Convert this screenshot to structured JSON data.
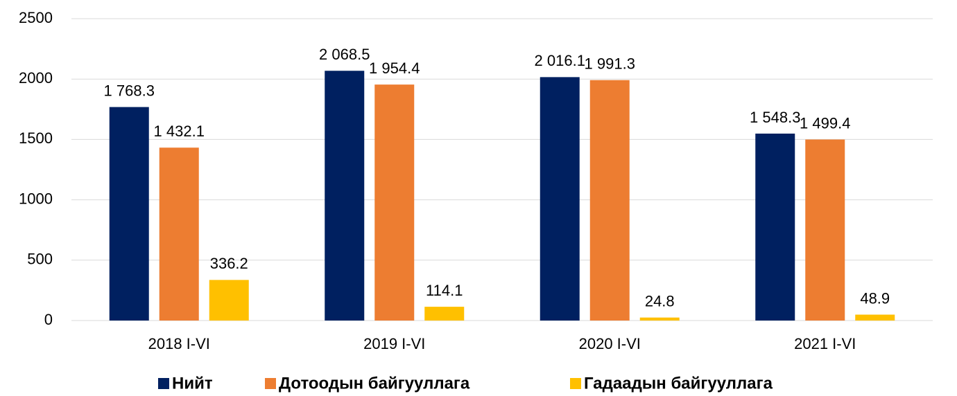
{
  "chart_data": {
    "type": "bar",
    "categories": [
      "2018 I-VI",
      "2019 I-VI",
      "2020 I-VI",
      "2021 I-VI"
    ],
    "series": [
      {
        "name": "Нийт",
        "color": "#002060",
        "values": [
          1768.3,
          2068.5,
          2016.1,
          1548.3
        ],
        "value_labels": [
          "1 768.3",
          "2 068.5",
          "2 016.1",
          "1 548.3"
        ]
      },
      {
        "name": "Дотоодын байгууллага",
        "color": "#ED7D31",
        "values": [
          1432.1,
          1954.4,
          1991.3,
          1499.4
        ],
        "value_labels": [
          "1 432.1",
          "1 954.4",
          "1 991.3",
          "1 499.4"
        ]
      },
      {
        "name": "Гадаадын байгууллага",
        "color": "#FFC000",
        "values": [
          336.2,
          114.1,
          24.8,
          48.9
        ],
        "value_labels": [
          "336.2",
          "114.1",
          "24.8",
          "48.9"
        ]
      }
    ],
    "ylim": [
      0,
      2500
    ],
    "yticks": [
      0,
      500,
      1000,
      1500,
      2000,
      2500
    ],
    "grid": true,
    "legend": "bottom"
  }
}
